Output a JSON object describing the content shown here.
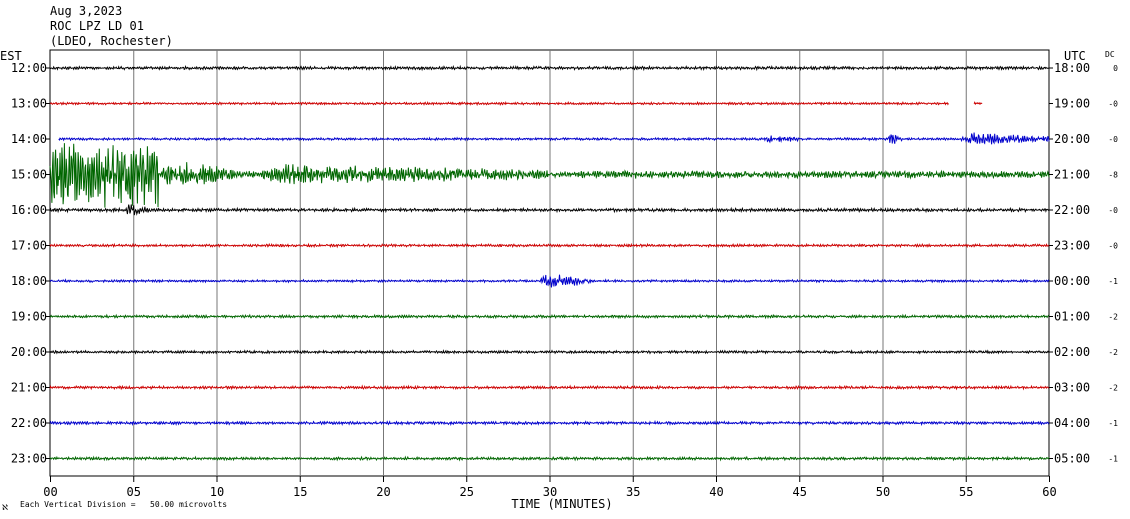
{
  "header": {
    "date": "Aug 3,2023",
    "station": "ROC LPZ LD 01",
    "network": "(LDEO, Rochester)"
  },
  "left_axis_label": "EST",
  "right_axis_label": "UTC",
  "dc_label": "DC",
  "footer": {
    "mark": "ℵ",
    "note": "Each Vertical Division =   50.00 microvolts"
  },
  "chart_data": {
    "type": "line",
    "title": "",
    "xlabel": "TIME (MINUTES)",
    "xlim": [
      0,
      60
    ],
    "x_ticks": [
      "00",
      "05",
      "10",
      "15",
      "20",
      "25",
      "30",
      "35",
      "40",
      "45",
      "50",
      "55",
      "60"
    ],
    "grid": "vertical lines every 5 minutes",
    "trace_colors": [
      "#000000",
      "#cc0000",
      "#0000cc",
      "#006600"
    ],
    "traces": [
      {
        "est": "12:00",
        "utc": "18:00",
        "dc": "0",
        "color": "#000000",
        "amplitude": 1.3,
        "events": []
      },
      {
        "est": "13:00",
        "utc": "19:00",
        "dc": "-0",
        "color": "#cc0000",
        "amplitude": 1.0,
        "gaps": [
          [
            54,
            55.5
          ],
          [
            56,
            60
          ]
        ],
        "events": []
      },
      {
        "est": "14:00",
        "utc": "20:00",
        "dc": "-0",
        "color": "#0000cc",
        "amplitude": 1.0,
        "gaps": [
          [
            0,
            0.5
          ]
        ],
        "events": [
          {
            "start": 42.8,
            "end": 45,
            "amp": 4
          },
          {
            "start": 50.3,
            "end": 51.2,
            "amp": 8
          },
          {
            "start": 54.5,
            "end": 60,
            "amp": 6
          }
        ]
      },
      {
        "est": "15:00",
        "utc": "21:00",
        "dc": "-8",
        "color": "#006600",
        "amplitude": 3.0,
        "events": [
          {
            "start": 0,
            "end": 6.5,
            "amp": 28
          },
          {
            "start": 6.5,
            "end": 11,
            "amp": 14
          },
          {
            "start": 11,
            "end": 30,
            "amp": 10
          },
          {
            "start": 30,
            "end": 60,
            "amp": 4
          }
        ]
      },
      {
        "est": "16:00",
        "utc": "22:00",
        "dc": "-0",
        "color": "#000000",
        "amplitude": 1.4,
        "events": [
          {
            "start": 4.5,
            "end": 6,
            "amp": 7
          }
        ]
      },
      {
        "est": "17:00",
        "utc": "23:00",
        "dc": "-0",
        "color": "#cc0000",
        "amplitude": 1.1,
        "events": []
      },
      {
        "est": "18:00",
        "utc": "00:00",
        "dc": "-1",
        "color": "#0000cc",
        "amplitude": 1.0,
        "events": [
          {
            "start": 29.3,
            "end": 32.5,
            "amp": 7
          }
        ]
      },
      {
        "est": "19:00",
        "utc": "01:00",
        "dc": "-2",
        "color": "#006600",
        "amplitude": 1.2,
        "events": []
      },
      {
        "est": "20:00",
        "utc": "02:00",
        "dc": "-2",
        "color": "#000000",
        "amplitude": 1.1,
        "events": []
      },
      {
        "est": "21:00",
        "utc": "03:00",
        "dc": "-2",
        "color": "#cc0000",
        "amplitude": 1.2,
        "events": []
      },
      {
        "est": "22:00",
        "utc": "04:00",
        "dc": "-1",
        "color": "#0000cc",
        "amplitude": 1.2,
        "events": []
      },
      {
        "est": "23:00",
        "utc": "05:00",
        "dc": "-1",
        "color": "#006600",
        "amplitude": 1.2,
        "events": []
      }
    ]
  }
}
